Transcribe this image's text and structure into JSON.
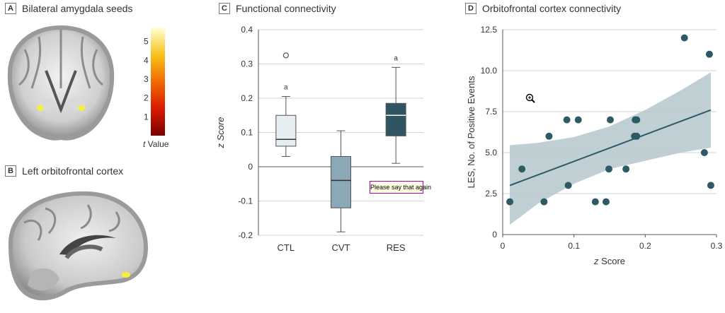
{
  "panelA": {
    "letter": "A",
    "title": "Bilateral amygdala seeds",
    "colorbar": {
      "ticks": [
        1,
        2,
        3,
        4,
        5
      ],
      "label_italic": "t",
      "label_rest": " Value"
    }
  },
  "panelB": {
    "letter": "B",
    "title": "Left orbitofrontal cortex"
  },
  "panelC": {
    "letter": "C",
    "title": "Functional connectivity"
  },
  "panelD": {
    "letter": "D",
    "title": "Orbitofrontal cortex connectivity"
  },
  "tooltip": "Please say that again",
  "chart_data": [
    {
      "type": "box",
      "title": "Functional connectivity",
      "ylabel": "z Score",
      "ylim": [
        -0.2,
        0.4
      ],
      "yticks": [
        "-0.2",
        "-0.1",
        "0",
        "0.1",
        "0.2",
        "0.3",
        "0.4"
      ],
      "categories": [
        "CTL",
        "CVT",
        "RES"
      ],
      "boxes": [
        {
          "name": "CTL",
          "whisker_low": 0.03,
          "q1": 0.06,
          "median": 0.08,
          "q3": 0.15,
          "whisker_high": 0.205,
          "outliers": [
            0.325
          ],
          "annotation": "a",
          "color": "#e6eef2"
        },
        {
          "name": "CVT",
          "whisker_low": -0.19,
          "q1": -0.12,
          "median": -0.04,
          "q3": 0.03,
          "whisker_high": 0.105,
          "outliers": [],
          "annotation": "",
          "color": "#8aa8b5"
        },
        {
          "name": "RES",
          "whisker_low": 0.01,
          "q1": 0.09,
          "median": 0.15,
          "q3": 0.185,
          "whisker_high": 0.29,
          "outliers": [],
          "annotation": "a",
          "color": "#2f5563"
        }
      ]
    },
    {
      "type": "scatter",
      "title": "Orbitofrontal cortex connectivity",
      "xlabel": "z Score",
      "ylabel": "LES, No. of Positive Events",
      "xlim": [
        0,
        0.3
      ],
      "ylim": [
        0,
        12.5
      ],
      "xticks": [
        "0",
        "0.1",
        "0.2",
        "0.3"
      ],
      "yticks": [
        "0",
        "2.5",
        "5.0",
        "7.5",
        "10.0",
        "12.5"
      ],
      "points": [
        [
          0.01,
          2
        ],
        [
          0.027,
          4
        ],
        [
          0.058,
          2
        ],
        [
          0.065,
          6
        ],
        [
          0.09,
          7
        ],
        [
          0.092,
          3
        ],
        [
          0.106,
          7
        ],
        [
          0.13,
          2
        ],
        [
          0.145,
          2
        ],
        [
          0.149,
          4
        ],
        [
          0.151,
          7
        ],
        [
          0.173,
          4
        ],
        [
          0.185,
          6
        ],
        [
          0.186,
          7
        ],
        [
          0.188,
          6
        ],
        [
          0.188,
          7
        ],
        [
          0.255,
          12
        ],
        [
          0.283,
          5
        ],
        [
          0.29,
          11
        ],
        [
          0.292,
          3
        ]
      ],
      "fit": [
        [
          0.01,
          3.0
        ],
        [
          0.292,
          7.6
        ]
      ],
      "ci_upper": [
        [
          0.01,
          5.45
        ],
        [
          0.05,
          5.6
        ],
        [
          0.1,
          5.95
        ],
        [
          0.15,
          6.6
        ],
        [
          0.2,
          7.6
        ],
        [
          0.25,
          8.8
        ],
        [
          0.292,
          9.9
        ]
      ],
      "ci_lower": [
        [
          0.01,
          0.6
        ],
        [
          0.05,
          1.9
        ],
        [
          0.1,
          3.1
        ],
        [
          0.15,
          4.0
        ],
        [
          0.2,
          4.5
        ],
        [
          0.25,
          5.0
        ],
        [
          0.292,
          5.3
        ]
      ],
      "point_color": "#2e5a66",
      "band_color": "#b5c7cd"
    }
  ]
}
